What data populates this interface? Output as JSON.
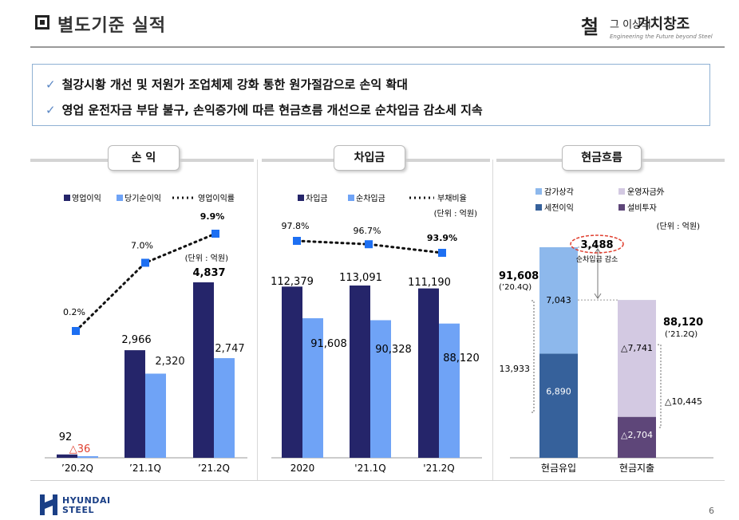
{
  "header": {
    "title": "별도기준 실적",
    "logo_korean_1": "철",
    "logo_korean_2": "그 이상의",
    "logo_korean_3": "가치창조",
    "logo_english": "Engineering the Future beyond Steel"
  },
  "summary": {
    "check_glyph": "✓",
    "bullets": [
      "철강시황 개선 및 저원가 조업체제 강화 통한 원가절감으로 손익 확대",
      "영업 운전자금 부담 불구, 손익증가에 따른 현금흐름 개선으로 순차입금 감소세 지속"
    ]
  },
  "panels": {
    "pl_title": "손 익",
    "debt_title": "차입금",
    "cf_title": "현금흐름"
  },
  "colors": {
    "dark_navy": "#25256a",
    "light_blue": "#6fa3f6",
    "marker_blue": "#1d6ff2",
    "cf_light_blue": "#8db8ec",
    "cf_dark_blue": "#36619b",
    "cf_lavender": "#d3c9e2",
    "cf_purple": "#5e4679",
    "highlight_red": "#e04030"
  },
  "chart_data": [
    {
      "type": "bar",
      "name": "pl",
      "categories": [
        "’20.2Q",
        "’21.1Q",
        "’21.2Q"
      ],
      "series": [
        {
          "name": "영업이익",
          "values": [
            92,
            2966,
            4837
          ],
          "labels": [
            "92",
            "2,966",
            "4,837"
          ]
        },
        {
          "name": "당기순이익",
          "values": [
            -36,
            2320,
            2747
          ],
          "labels": [
            "△36",
            "2,320",
            "2,747"
          ]
        }
      ],
      "line_series": {
        "name": "영업이익률",
        "values": [
          0.2,
          7.0,
          9.9
        ],
        "labels": [
          "0.2%",
          "7.0%",
          "9.9%"
        ]
      },
      "unit": "(단위 : 억원)"
    },
    {
      "type": "bar",
      "name": "debt",
      "categories": [
        "2020",
        "'21.1Q",
        "'21.2Q"
      ],
      "series": [
        {
          "name": "차입금",
          "values": [
            112379,
            113091,
            111190
          ],
          "labels": [
            "112,379",
            "113,091",
            "111,190"
          ]
        },
        {
          "name": "순차입금",
          "values": [
            91608,
            90328,
            88120
          ],
          "labels": [
            "91,608",
            "90,328",
            "88,120"
          ]
        }
      ],
      "line_series": {
        "name": "부채비율",
        "values": [
          97.8,
          96.7,
          93.9
        ],
        "labels": [
          "97.8%",
          "96.7%",
          "93.9%"
        ]
      },
      "unit": "(단위 : 억원)"
    },
    {
      "type": "bar",
      "name": "cashflow",
      "categories": [
        "현금유입",
        "현금지출"
      ],
      "legend": [
        "감가상각",
        "운영자금外",
        "세전이익",
        "설비투자"
      ],
      "inflow": {
        "start_label": "91,608",
        "start_period": "(’20.4Q)",
        "segments": [
          {
            "name": "세전이익",
            "value": 6890,
            "label": "6,890"
          },
          {
            "name": "감가상각",
            "value": 7043,
            "label": "7,043"
          }
        ],
        "total_label": "13,933"
      },
      "outflow": {
        "end_label": "88,120",
        "end_period": "(’21.2Q)",
        "segments": [
          {
            "name": "설비투자",
            "value": -2704,
            "label": "△2,704"
          },
          {
            "name": "운영자금外",
            "value": -7741,
            "label": "△7,741"
          }
        ],
        "total_label": "△10,445"
      },
      "highlight": {
        "value": "3,488",
        "label": "순차입금 감소"
      },
      "unit": "(단위 : 억원)"
    }
  ],
  "footer": {
    "company_line1": "HYUNDAI",
    "company_line2": "STEEL",
    "page_number": "6"
  }
}
